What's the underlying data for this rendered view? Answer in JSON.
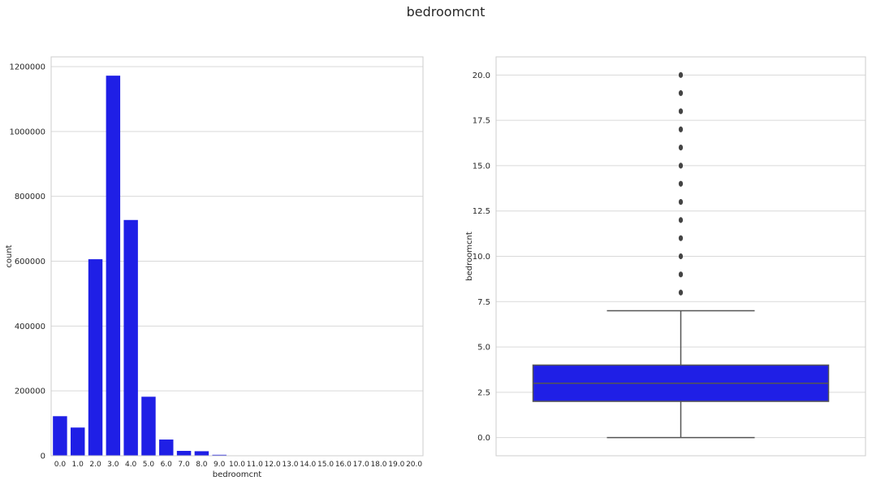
{
  "suptitle": "bedroomcnt",
  "colors": {
    "bar": "#1f1fe6",
    "box": "#1f1fe6",
    "grid": "#d9d9d9",
    "frame": "#cccccc",
    "whisker": "#555555",
    "flier": "#444444"
  },
  "chart_data": [
    {
      "type": "bar",
      "xlabel": "bedroomcnt",
      "ylabel": "count",
      "ylim": [
        0,
        1230000
      ],
      "yticks": [
        "0",
        "200000",
        "400000",
        "600000",
        "800000",
        "1000000",
        "1200000"
      ],
      "grid": true,
      "categories": [
        "0.0",
        "1.0",
        "2.0",
        "3.0",
        "4.0",
        "5.0",
        "6.0",
        "7.0",
        "8.0",
        "9.0",
        "10.0",
        "11.0",
        "12.0",
        "13.0",
        "14.0",
        "15.0",
        "16.0",
        "17.0",
        "18.0",
        "19.0",
        "20.0"
      ],
      "values": [
        122000,
        87000,
        606000,
        1172000,
        727000,
        182000,
        50000,
        15000,
        14000,
        3000,
        900,
        300,
        200,
        100,
        60,
        40,
        30,
        20,
        10,
        10,
        10
      ]
    },
    {
      "type": "box",
      "ylabel": "bedroomcnt",
      "ylim": [
        -1.0,
        21.0
      ],
      "yticks": [
        "0.0",
        "2.5",
        "5.0",
        "7.5",
        "10.0",
        "12.5",
        "15.0",
        "17.5",
        "20.0"
      ],
      "grid": true,
      "box": {
        "whisker_low": 0,
        "q1": 2,
        "median": 3,
        "q3": 4,
        "whisker_high": 7
      },
      "outliers": [
        8,
        9,
        10,
        11,
        12,
        13,
        14,
        15,
        16,
        17,
        18,
        19,
        20
      ]
    }
  ]
}
